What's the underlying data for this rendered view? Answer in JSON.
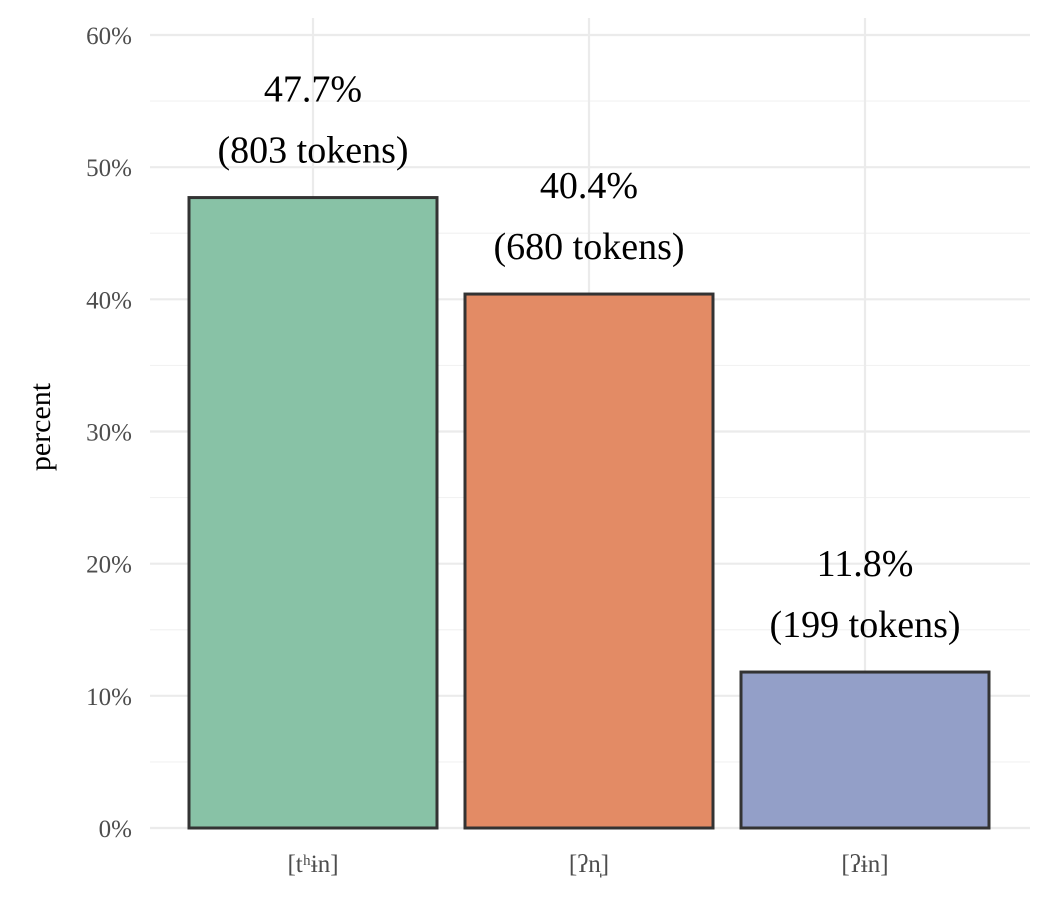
{
  "chart_data": {
    "type": "bar",
    "ylabel": "percent",
    "ylim": [
      0,
      60
    ],
    "y_ticks": [
      "0%",
      "10%",
      "20%",
      "30%",
      "40%",
      "50%",
      "60%"
    ],
    "y_tick_values": [
      0,
      10,
      20,
      30,
      40,
      50,
      60
    ],
    "categories": [
      "[tʰɨn]",
      "[ʔn̩]",
      "[ʔɨn]"
    ],
    "values": [
      47.7,
      40.4,
      11.8
    ],
    "value_labels": [
      "47.7%",
      "40.4%",
      "11.8%"
    ],
    "token_labels": [
      "(803 tokens)",
      "(680 tokens)",
      "(199 tokens)"
    ],
    "colors": [
      "#88c2a6",
      "#e38b65",
      "#939fc8"
    ],
    "grid": true,
    "legend": "none"
  }
}
